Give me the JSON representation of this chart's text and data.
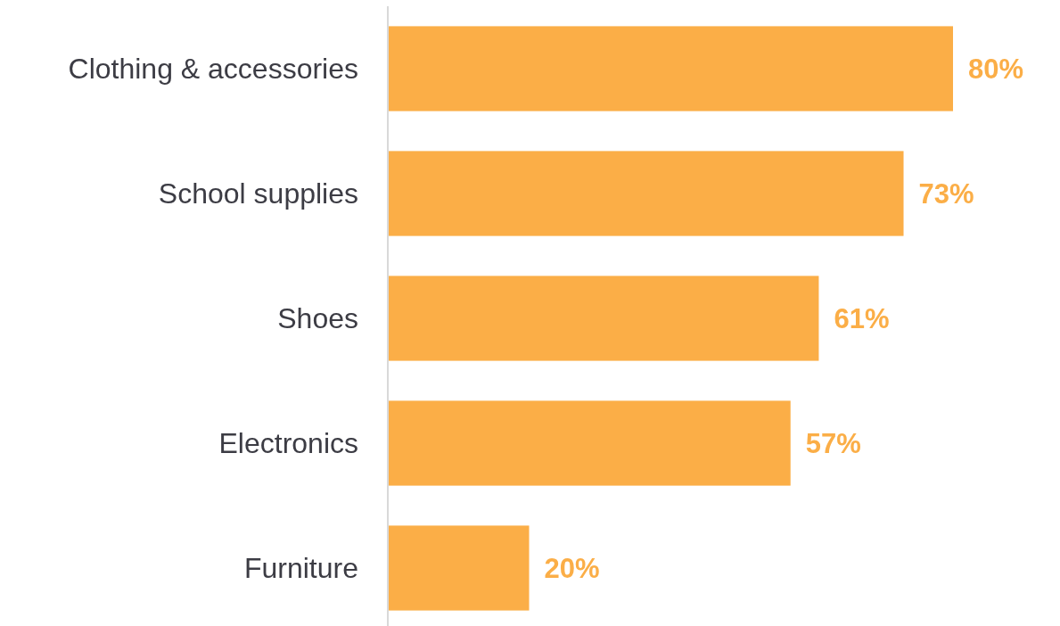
{
  "chart_data": {
    "type": "bar",
    "orientation": "horizontal",
    "categories": [
      "Clothing & accessories",
      "School supplies",
      "Shoes",
      "Electronics",
      "Furniture"
    ],
    "values": [
      80,
      73,
      61,
      57,
      20
    ],
    "value_labels": [
      "80%",
      "73%",
      "61%",
      "57%",
      "20%"
    ],
    "color": "#fbae47"
  }
}
